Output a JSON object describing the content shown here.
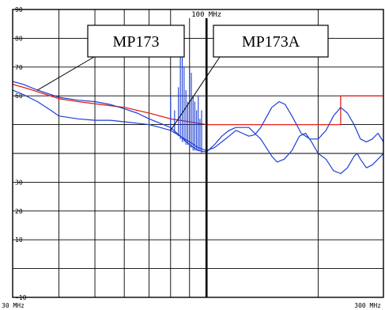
{
  "chart_data": {
    "type": "line",
    "title": "",
    "xlabel": "",
    "ylabel": "",
    "x_scale": "log",
    "xlim_mhz": [
      30,
      300
    ],
    "ylim": [
      -10,
      90
    ],
    "x_tick_labels": [
      "30 MHz",
      "300 MHz"
    ],
    "y_ticks": [
      -10,
      0,
      10,
      20,
      30,
      40,
      50,
      60,
      70,
      80,
      90
    ],
    "y_tick_labels": [
      "-10",
      "",
      "10",
      "20",
      "30",
      "",
      "",
      "60",
      "70",
      "80",
      "90"
    ],
    "marker": {
      "x": 100,
      "label": "100 MHz"
    },
    "grid": true,
    "callouts": [
      {
        "text": "MP173",
        "points_to_series": "MP173",
        "points_to_x": 37
      },
      {
        "text": "MP173A",
        "points_to_series": "MP173A",
        "points_to_x": 80
      }
    ],
    "series": [
      {
        "id": "limit",
        "color": "#e8201a",
        "points": [
          [
            30,
            64
          ],
          [
            33,
            62.5
          ],
          [
            40,
            59
          ],
          [
            45,
            58
          ],
          [
            60,
            56
          ],
          [
            70,
            54
          ],
          [
            80,
            52
          ],
          [
            90,
            51
          ],
          [
            100,
            50
          ],
          [
            150,
            50
          ],
          [
            230,
            50
          ],
          [
            230,
            60
          ],
          [
            300,
            60
          ]
        ]
      },
      {
        "id": "MP173",
        "color": "#1c3fd4",
        "points": [
          [
            30,
            65
          ],
          [
            32,
            64
          ],
          [
            35,
            62
          ],
          [
            40,
            59.5
          ],
          [
            45,
            58.5
          ],
          [
            50,
            58
          ],
          [
            55,
            57
          ],
          [
            60,
            55.5
          ],
          [
            65,
            54
          ],
          [
            70,
            52
          ],
          [
            80,
            49
          ],
          [
            85,
            46
          ],
          [
            90,
            44
          ],
          [
            95,
            42
          ],
          [
            100,
            41
          ],
          [
            105,
            42
          ],
          [
            110,
            44
          ],
          [
            115,
            46
          ],
          [
            120,
            48
          ],
          [
            125,
            47
          ],
          [
            130,
            46
          ],
          [
            135,
            46.5
          ],
          [
            140,
            49
          ],
          [
            150,
            56
          ],
          [
            157,
            58
          ],
          [
            163,
            57
          ],
          [
            170,
            53
          ],
          [
            180,
            47
          ],
          [
            190,
            45
          ],
          [
            200,
            45
          ],
          [
            210,
            48
          ],
          [
            220,
            53
          ],
          [
            230,
            56
          ],
          [
            240,
            54
          ],
          [
            250,
            50
          ],
          [
            260,
            45
          ],
          [
            270,
            44
          ],
          [
            280,
            45
          ],
          [
            290,
            47
          ],
          [
            300,
            44
          ]
        ]
      },
      {
        "id": "MP173A",
        "color": "#1c3fd4",
        "points": [
          [
            30,
            62
          ],
          [
            32,
            60.5
          ],
          [
            35,
            58
          ],
          [
            38,
            55
          ],
          [
            40,
            53
          ],
          [
            45,
            52
          ],
          [
            50,
            51.5
          ],
          [
            55,
            51.5
          ],
          [
            60,
            51
          ],
          [
            65,
            50.5
          ],
          [
            70,
            50
          ],
          [
            75,
            49
          ],
          [
            80,
            48
          ],
          [
            85,
            46
          ],
          [
            90,
            43
          ],
          [
            95,
            41
          ],
          [
            100,
            40.5
          ],
          [
            105,
            43
          ],
          [
            110,
            46
          ],
          [
            115,
            48
          ],
          [
            120,
            49
          ],
          [
            130,
            49
          ],
          [
            140,
            45
          ],
          [
            150,
            39
          ],
          [
            155,
            37
          ],
          [
            162,
            38
          ],
          [
            170,
            41
          ],
          [
            178,
            46
          ],
          [
            185,
            47
          ],
          [
            192,
            44
          ],
          [
            200,
            40
          ],
          [
            210,
            38
          ],
          [
            220,
            34
          ],
          [
            230,
            33
          ],
          [
            240,
            35
          ],
          [
            250,
            39
          ],
          [
            255,
            40
          ],
          [
            260,
            38
          ],
          [
            270,
            35
          ],
          [
            280,
            36
          ],
          [
            290,
            38
          ],
          [
            300,
            40
          ]
        ]
      },
      {
        "id": "spikes",
        "color": "#1c3fd4",
        "points": [
          [
            80,
            48
          ],
          [
            80,
            60
          ],
          [
            82,
            47
          ],
          [
            82,
            55
          ],
          [
            84,
            46
          ],
          [
            84,
            63
          ],
          [
            85,
            45
          ],
          [
            85,
            75
          ],
          [
            86,
            44
          ],
          [
            86,
            75
          ],
          [
            87,
            44
          ],
          [
            87,
            70
          ],
          [
            88,
            43
          ],
          [
            88,
            62
          ],
          [
            89,
            43
          ],
          [
            89,
            58
          ],
          [
            90,
            42
          ],
          [
            90,
            70
          ],
          [
            91,
            42
          ],
          [
            91,
            68
          ],
          [
            92,
            41
          ],
          [
            92,
            60
          ],
          [
            93,
            41
          ],
          [
            93,
            58
          ],
          [
            94,
            41
          ],
          [
            94,
            55
          ],
          [
            95,
            41
          ],
          [
            95,
            60
          ],
          [
            96,
            41
          ],
          [
            96,
            52
          ],
          [
            97,
            40
          ],
          [
            97,
            55
          ]
        ]
      }
    ]
  }
}
